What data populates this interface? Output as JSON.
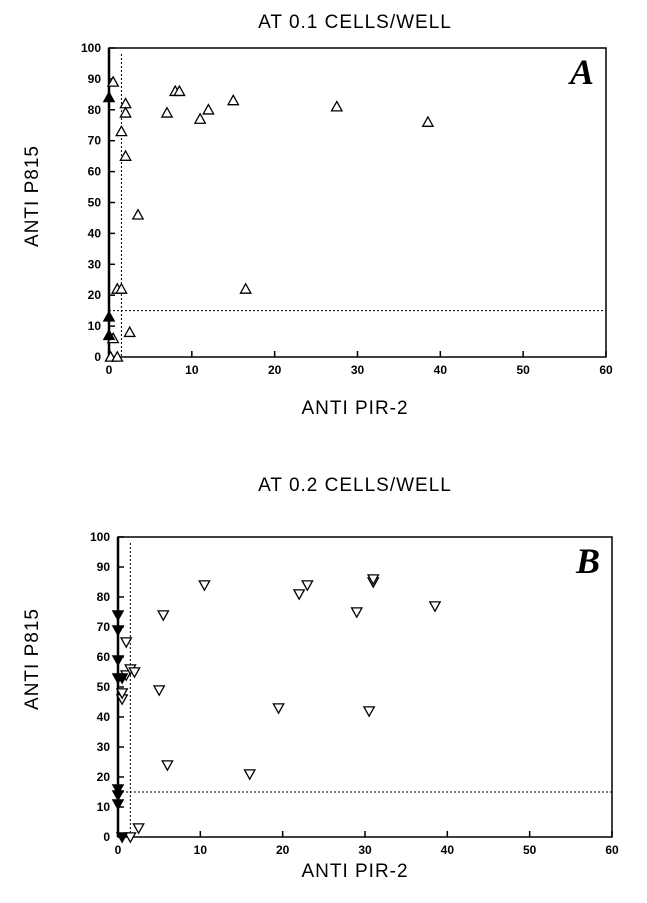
{
  "chart_data": [
    {
      "type": "scatter",
      "title": "AT 0.1 CELLS/WELL",
      "panel_label": "A",
      "xlabel": "ANTI PIR-2",
      "ylabel": "ANTI P815",
      "xlim": [
        0,
        60
      ],
      "ylim": [
        0,
        100
      ],
      "xticks": [
        0,
        10,
        20,
        30,
        40,
        50,
        60
      ],
      "yticks": [
        0,
        10,
        20,
        30,
        40,
        50,
        60,
        70,
        80,
        90,
        100
      ],
      "thresholds": {
        "x": 1.5,
        "y": 15
      },
      "marker": "triangle-up",
      "series": [
        {
          "style": "open",
          "points": [
            [
              0.5,
              89
            ],
            [
              1.5,
              73
            ],
            [
              2,
              82
            ],
            [
              2,
              79
            ],
            [
              2,
              65
            ],
            [
              3.5,
              46
            ],
            [
              1,
              22
            ],
            [
              1.5,
              22
            ],
            [
              2.5,
              8
            ],
            [
              0.5,
              6
            ],
            [
              0.2,
              0
            ],
            [
              1,
              0
            ],
            [
              7,
              79
            ],
            [
              8,
              86
            ],
            [
              8.5,
              86
            ],
            [
              11,
              77
            ],
            [
              12,
              80
            ],
            [
              15,
              83
            ],
            [
              16.5,
              22
            ],
            [
              27.5,
              81
            ],
            [
              38.5,
              76
            ]
          ]
        },
        {
          "style": "filled",
          "points": [
            [
              0,
              84
            ],
            [
              0,
              13
            ],
            [
              0,
              7
            ]
          ]
        }
      ]
    },
    {
      "type": "scatter",
      "title": "AT 0.2 CELLS/WELL",
      "panel_label": "B",
      "xlabel": "ANTI PIR-2",
      "ylabel": "ANTI P815",
      "xlim": [
        0,
        60
      ],
      "ylim": [
        0,
        100
      ],
      "xticks": [
        0,
        10,
        20,
        30,
        40,
        50,
        60
      ],
      "yticks": [
        0,
        10,
        20,
        30,
        40,
        50,
        60,
        70,
        80,
        90,
        100
      ],
      "thresholds": {
        "x": 1.5,
        "y": 15
      },
      "marker": "triangle-down",
      "series": [
        {
          "style": "open",
          "points": [
            [
              0.5,
              46
            ],
            [
              0.5,
              48
            ],
            [
              1,
              54
            ],
            [
              1,
              65
            ],
            [
              1.5,
              56
            ],
            [
              2,
              55
            ],
            [
              2.5,
              3
            ],
            [
              1.5,
              0
            ],
            [
              5,
              49
            ],
            [
              5.5,
              74
            ],
            [
              6,
              24
            ],
            [
              10.5,
              84
            ],
            [
              16,
              21
            ],
            [
              19.5,
              43
            ],
            [
              22,
              81
            ],
            [
              23,
              84
            ],
            [
              29,
              75
            ],
            [
              30.5,
              42
            ],
            [
              31,
              85
            ],
            [
              31,
              86
            ],
            [
              38.5,
              77
            ]
          ]
        },
        {
          "style": "filled",
          "points": [
            [
              0,
              74
            ],
            [
              0,
              69
            ],
            [
              0,
              59
            ],
            [
              0,
              53
            ],
            [
              0,
              16
            ],
            [
              0,
              14
            ],
            [
              0,
              11
            ],
            [
              0.5,
              0
            ],
            [
              0.5,
              53
            ]
          ]
        }
      ]
    }
  ]
}
